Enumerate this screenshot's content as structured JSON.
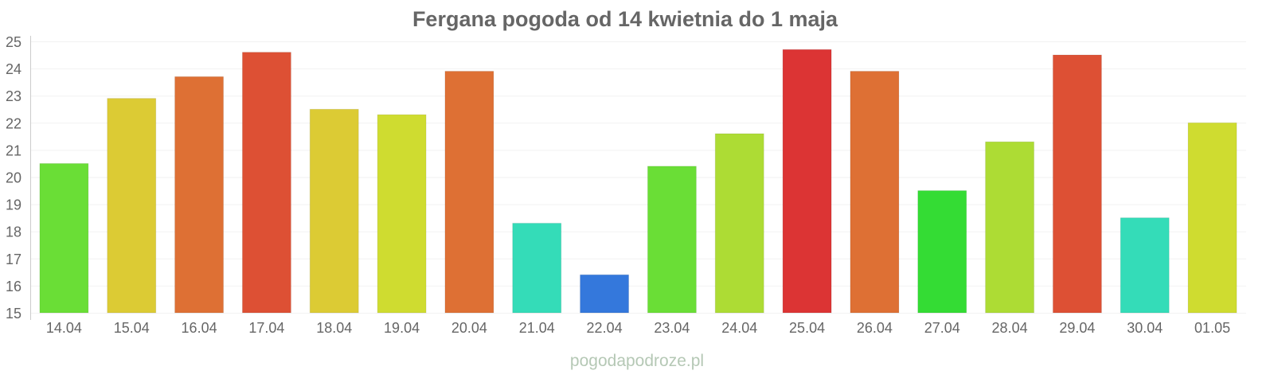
{
  "chart_data": {
    "type": "bar",
    "title": "Fergana pogoda od 14 kwietnia do 1 maja",
    "xlabel": "",
    "ylabel": "",
    "ylim": [
      15,
      25
    ],
    "yticks": [
      "15",
      "16",
      "17",
      "18",
      "19",
      "20",
      "21",
      "22",
      "23",
      "24",
      "25"
    ],
    "grid": true,
    "categories": [
      "14.04",
      "15.04",
      "16.04",
      "17.04",
      "18.04",
      "19.04",
      "20.04",
      "21.04",
      "22.04",
      "23.04",
      "24.04",
      "25.04",
      "26.04",
      "27.04",
      "28.04",
      "29.04",
      "30.04",
      "01.05"
    ],
    "values": [
      20.5,
      22.9,
      23.7,
      24.6,
      22.5,
      22.3,
      23.9,
      18.3,
      16.4,
      20.4,
      21.6,
      24.7,
      23.9,
      19.5,
      21.3,
      24.5,
      18.5,
      22.0
    ],
    "colors": [
      "#6ade36",
      "#dccb34",
      "#de7034",
      "#dd5034",
      "#dccb34",
      "#cfdc30",
      "#de7034",
      "#34dcb8",
      "#3478dc",
      "#6ade36",
      "#addc34",
      "#dc3434",
      "#de7034",
      "#34dc34",
      "#addc34",
      "#dd5034",
      "#34dcb8",
      "#cfdc30"
    ]
  },
  "watermark": "pogodapodroze.pl"
}
